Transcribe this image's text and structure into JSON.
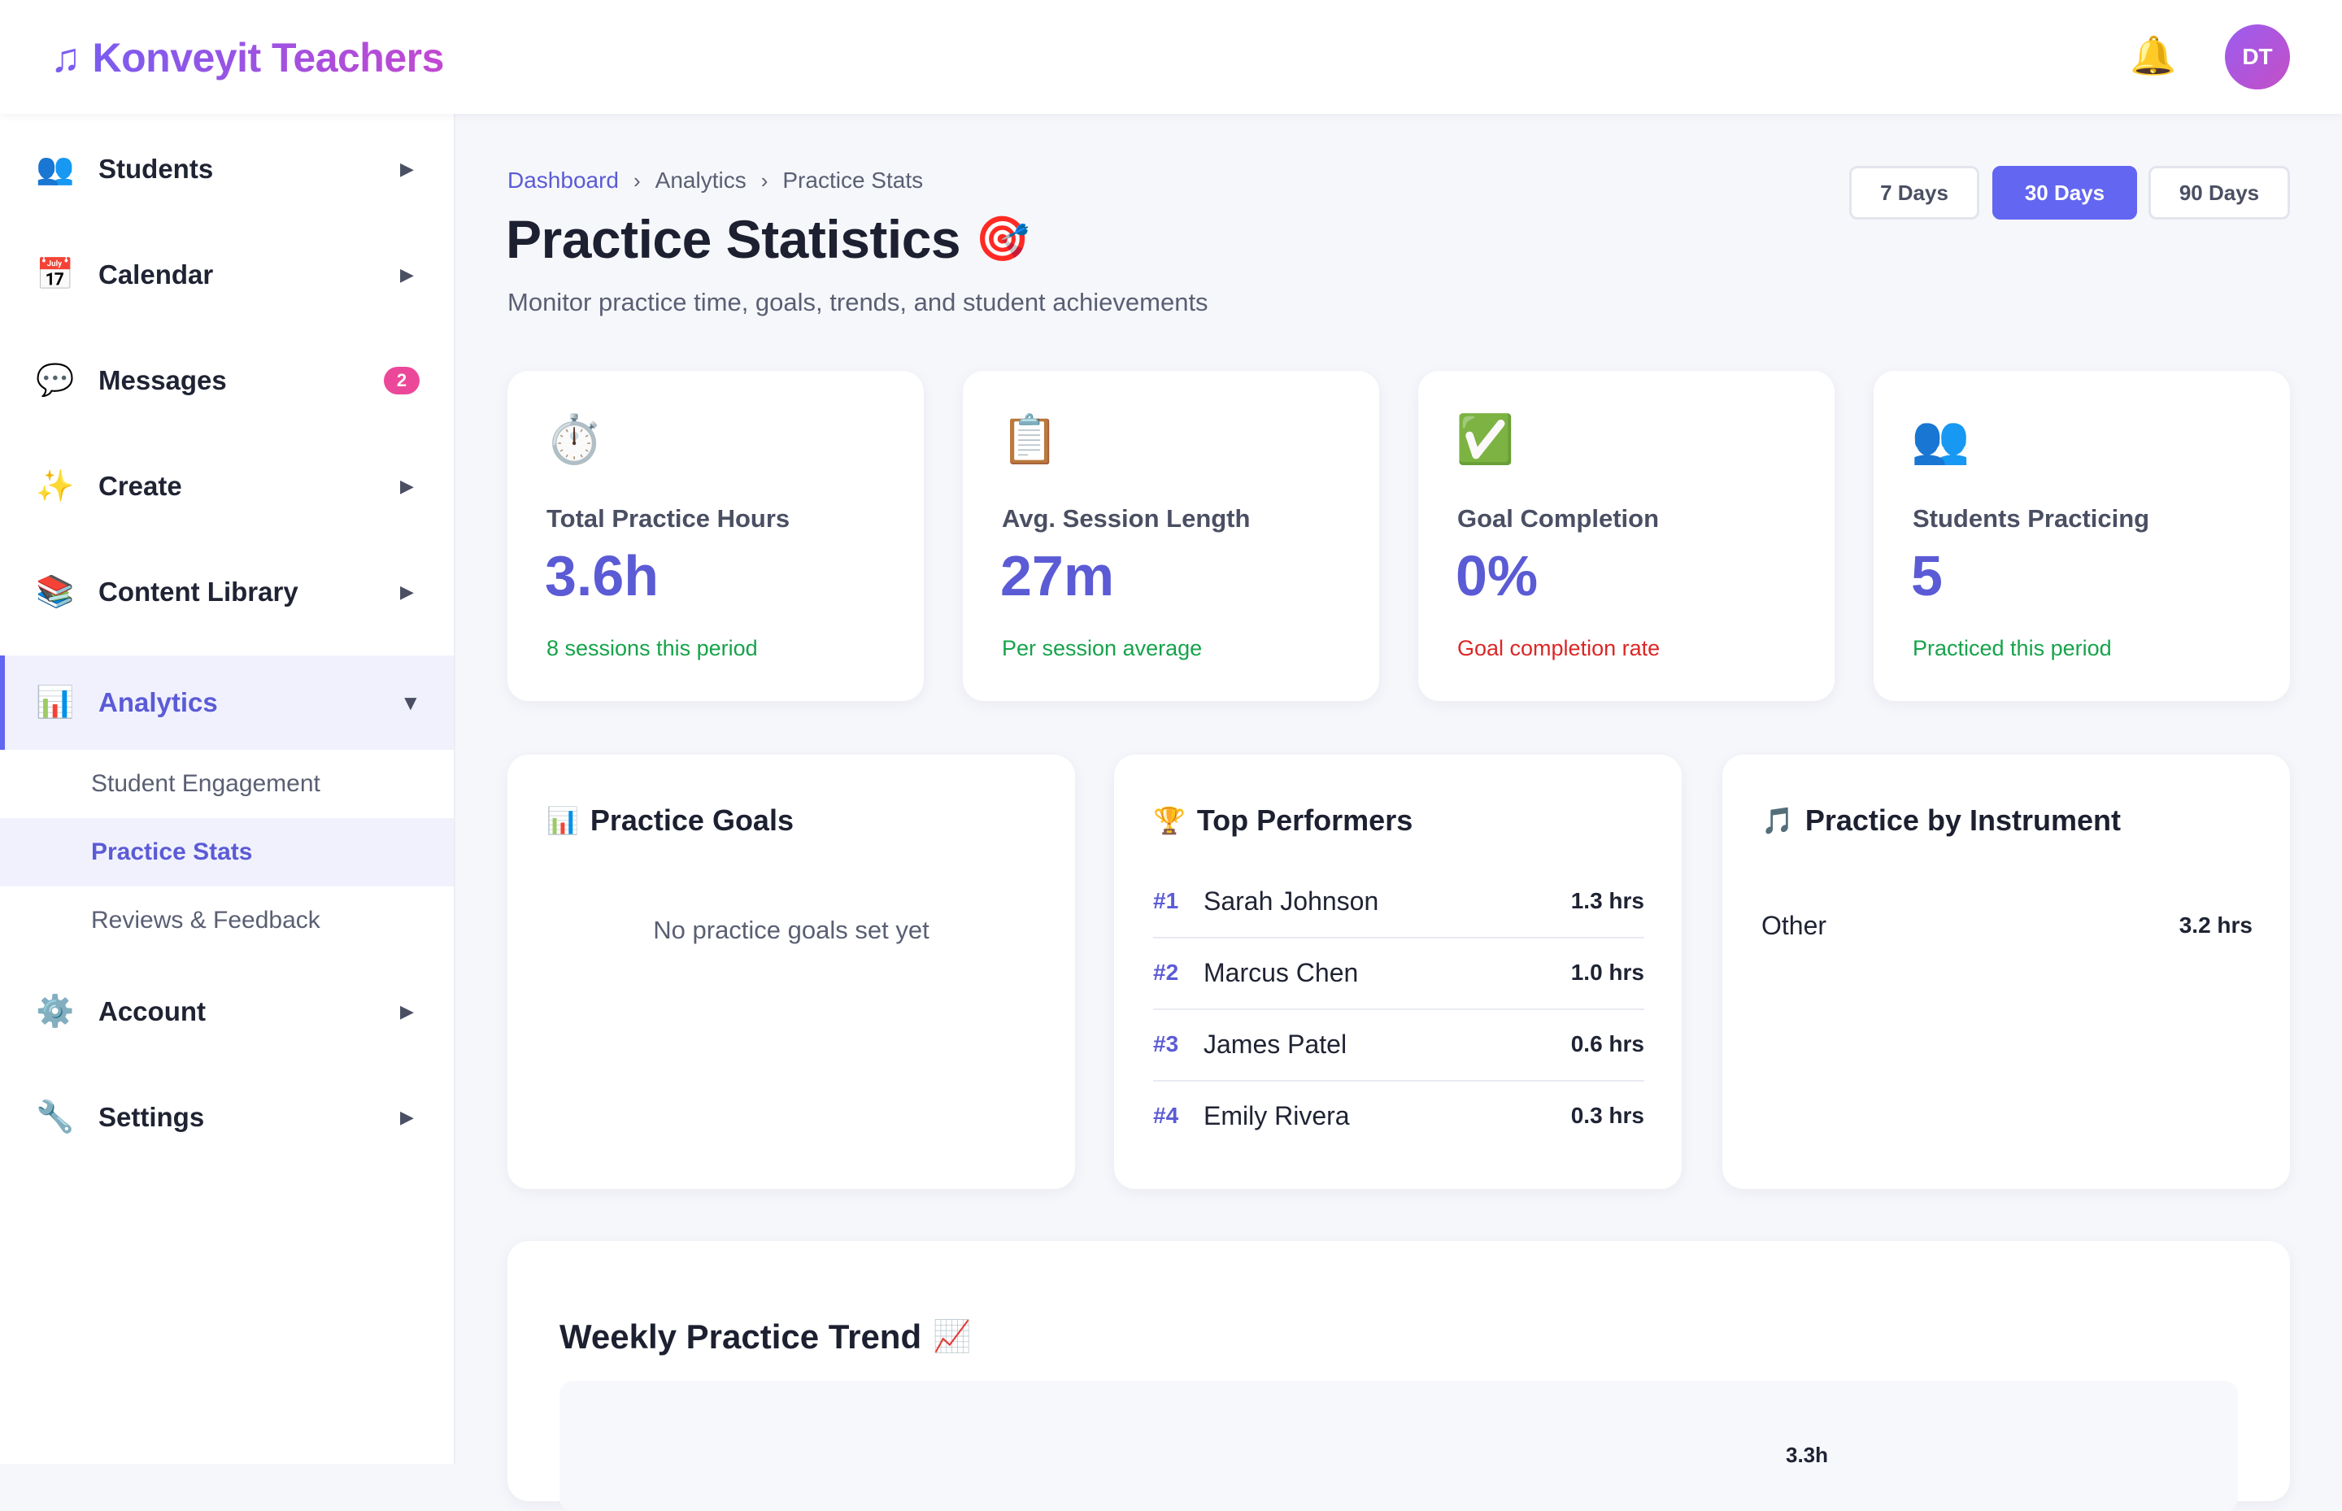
{
  "app": {
    "name": "Konveyit Teachers",
    "logo_icon": "music-note-icon",
    "avatar_initials": "DT",
    "notification_icon": "bell-icon"
  },
  "sidebar": {
    "items": [
      {
        "label": "Students",
        "icon": "👥",
        "icon_name": "people-icon"
      },
      {
        "label": "Calendar",
        "icon": "📅",
        "icon_name": "calendar-icon"
      },
      {
        "label": "Messages",
        "icon": "💬",
        "icon_name": "speech-bubble-icon",
        "badge": "2"
      },
      {
        "label": "Create",
        "icon": "✨",
        "icon_name": "sparkles-icon"
      },
      {
        "label": "Content Library",
        "icon": "📚",
        "icon_name": "books-icon"
      },
      {
        "label": "Analytics",
        "icon": "📊",
        "icon_name": "bar-chart-icon"
      },
      {
        "label": "Account",
        "icon": "⚙️",
        "icon_name": "gear-icon"
      },
      {
        "label": "Settings",
        "icon": "🔧",
        "icon_name": "wrench-icon"
      }
    ],
    "analytics_subitems": [
      "Student Engagement",
      "Practice Stats",
      "Reviews & Feedback"
    ],
    "active_item": "Analytics",
    "active_subitem": "Practice Stats"
  },
  "breadcrumb": [
    "Dashboard",
    "Analytics",
    "Practice Stats"
  ],
  "page": {
    "title": "Practice Statistics",
    "title_icon": "🎯",
    "subtitle": "Monitor practice time, goals, trends, and student achievements"
  },
  "range": {
    "options": [
      "7 Days",
      "30 Days",
      "90 Days"
    ],
    "selected": "30 Days"
  },
  "stats": [
    {
      "icon": "⏱️",
      "icon_name": "stopwatch-icon",
      "label": "Total Practice Hours",
      "value": "3.6h",
      "note": "8 sessions this period",
      "note_color": "#16a34a"
    },
    {
      "icon": "📋",
      "icon_name": "clipboard-icon",
      "label": "Avg. Session Length",
      "value": "27m",
      "note": "Per session average",
      "note_color": "#16a34a"
    },
    {
      "icon": "✅",
      "icon_name": "check-mark-icon",
      "label": "Goal Completion",
      "value": "0%",
      "note": "Goal completion rate",
      "note_color": "#dc2626"
    },
    {
      "icon": "👥",
      "icon_name": "people-icon",
      "label": "Students Practicing",
      "value": "5",
      "note": "Practiced this period",
      "note_color": "#16a34a"
    }
  ],
  "goals_panel": {
    "title": "Practice Goals",
    "icon": "📊",
    "empty_message": "No practice goals set yet"
  },
  "performers_panel": {
    "title": "Top Performers",
    "icon": "🏆",
    "rows": [
      {
        "rank": "#1",
        "name": "Sarah Johnson",
        "hours": "1.3 hrs"
      },
      {
        "rank": "#2",
        "name": "Marcus Chen",
        "hours": "1.0 hrs"
      },
      {
        "rank": "#3",
        "name": "James Patel",
        "hours": "0.6 hrs"
      },
      {
        "rank": "#4",
        "name": "Emily Rivera",
        "hours": "0.3 hrs"
      }
    ]
  },
  "instrument_panel": {
    "title": "Practice by Instrument",
    "icon": "🎵",
    "rows": [
      {
        "name": "Other",
        "hours": "3.2 hrs"
      }
    ]
  },
  "trend": {
    "title": "Weekly Practice Trend",
    "icon": "📈",
    "peak_label": "3.3h"
  },
  "colors": {
    "accent": "#6366f1",
    "accent_text": "#5b5bd6",
    "positive": "#16a34a",
    "negative": "#dc2626",
    "badge": "#ec4899"
  }
}
